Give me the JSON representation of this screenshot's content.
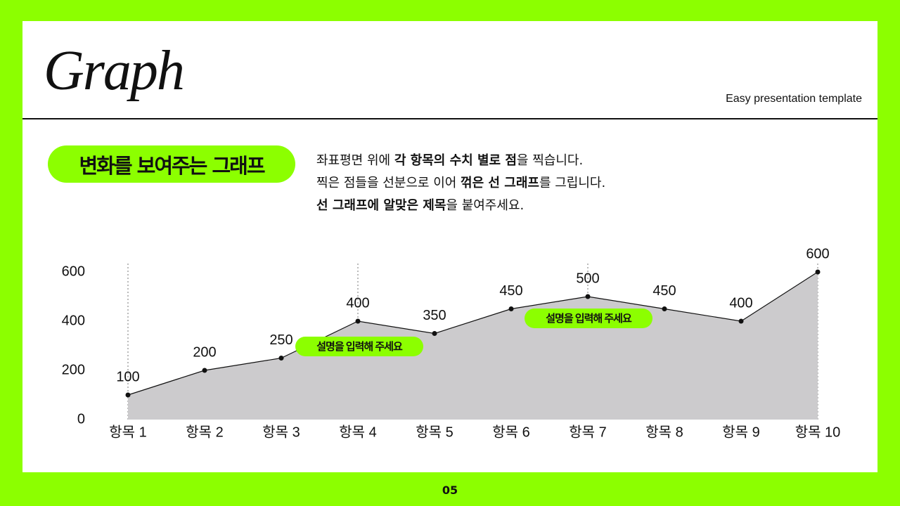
{
  "header": {
    "title": "Graph",
    "subtitle": "Easy presentation template"
  },
  "section": {
    "heading": "변화를 보여주는 그래프",
    "description": [
      [
        {
          "text": "좌표평면 위에 ",
          "bold": false
        },
        {
          "text": "각 항목의 수치 별로 점",
          "bold": true
        },
        {
          "text": "을 찍습니다.",
          "bold": false
        }
      ],
      [
        {
          "text": "찍은 점들을 선분으로 이어 ",
          "bold": false
        },
        {
          "text": "꺾은 선 그래프",
          "bold": true
        },
        {
          "text": "를 그립니다.",
          "bold": false
        }
      ],
      [
        {
          "text": "선 그래프에 알맞은 제목",
          "bold": true
        },
        {
          "text": "을 붙여주세요.",
          "bold": false
        }
      ]
    ]
  },
  "chart_data": {
    "type": "area",
    "categories": [
      "항목 1",
      "항목 2",
      "항목 3",
      "항목 4",
      "항목 5",
      "항목 6",
      "항목 7",
      "항목 8",
      "항목 9",
      "항목 10"
    ],
    "values": [
      100,
      200,
      250,
      400,
      350,
      450,
      500,
      450,
      400,
      600
    ],
    "fill_color": "#cccbcd",
    "line_color": "#111111",
    "annotation_color": "#8cff00",
    "ylim": [
      0,
      600
    ],
    "yticks": [
      0,
      200,
      400,
      600
    ],
    "annotations": [
      {
        "text": "설명을 입력해 주세요"
      },
      {
        "text": "설명을 입력해 주세요"
      }
    ]
  },
  "page_number": "05"
}
